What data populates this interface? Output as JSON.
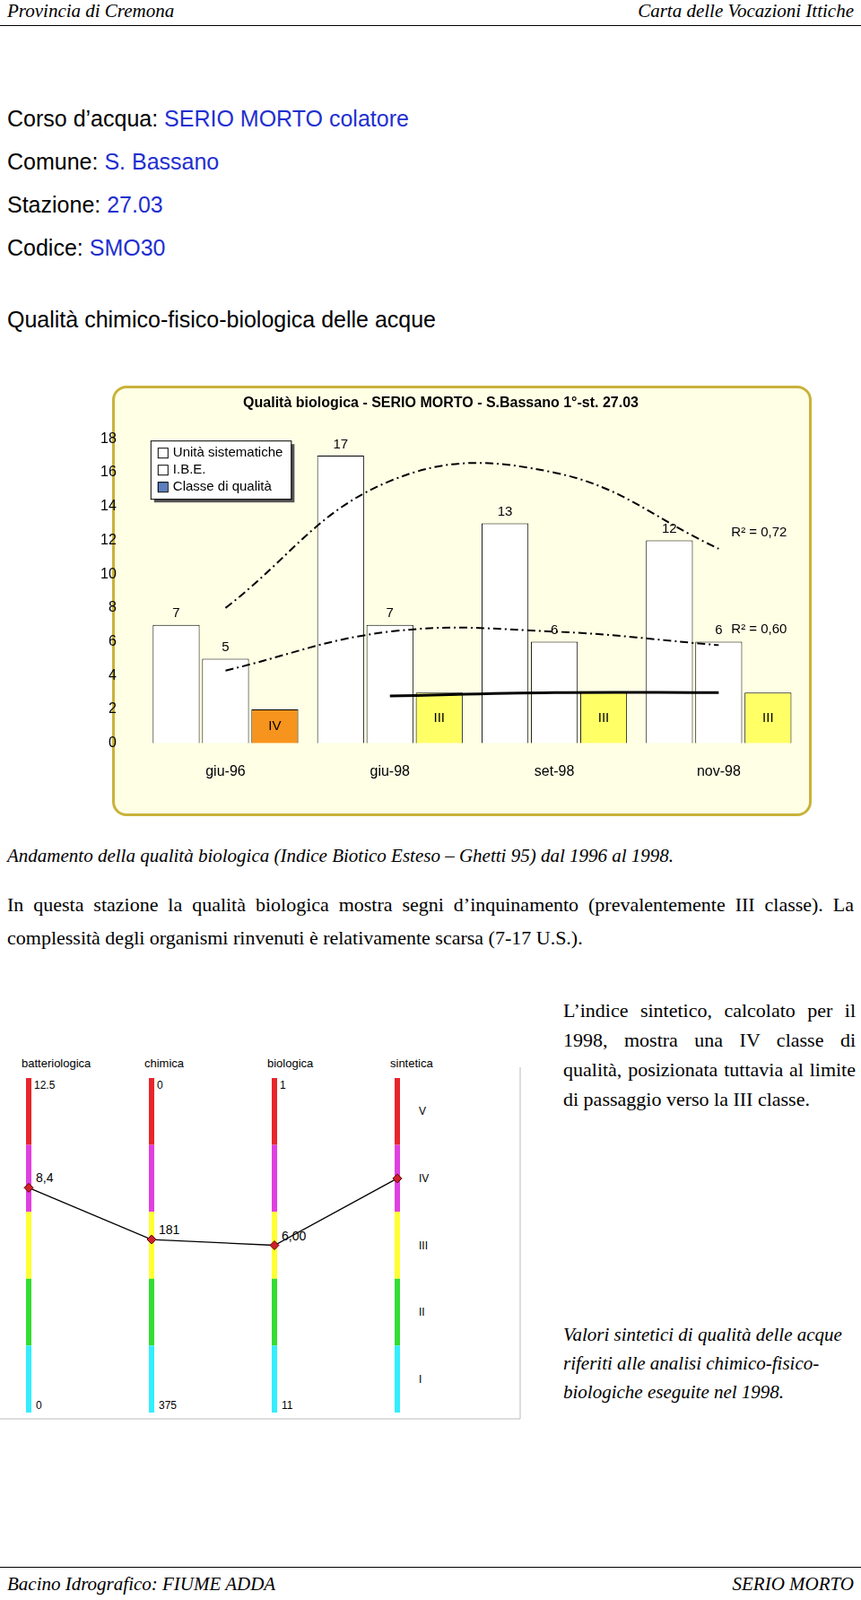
{
  "header": {
    "left": "Provincia di Cremona",
    "right": "Carta delle Vocazioni Ittiche"
  },
  "info": [
    {
      "label": "Corso d’acqua: ",
      "value": "SERIO MORTO colatore"
    },
    {
      "label": "Comune: ",
      "value": "S. Bassano"
    },
    {
      "label": "Stazione: ",
      "value": "27.03"
    },
    {
      "label": "Codice: ",
      "value": "SMO30"
    }
  ],
  "section_title": "Qualità chimico-fisico-biologica delle acque",
  "chart_data": {
    "type": "bar",
    "title": "Qualità biologica - SERIO MORTO - S.Bassano 1°-st. 27.03",
    "categories": [
      "giu-96",
      "giu-98",
      "set-98",
      "nov-98"
    ],
    "ylim": [
      0,
      18
    ],
    "yticks": [
      0,
      2,
      4,
      6,
      8,
      10,
      12,
      14,
      16,
      18
    ],
    "grid": false,
    "legend": "top-left",
    "data_labels": true,
    "series": [
      {
        "name": "Unità sistematiche",
        "color": "#ffffff",
        "values": [
          7,
          17,
          13,
          12
        ]
      },
      {
        "name": "I.B.E.",
        "color": "#ffffff",
        "values": [
          5,
          7,
          6,
          6
        ]
      },
      {
        "name": "Classe di qualità",
        "color": "#5b7fbf",
        "colors": [
          "#f7941d",
          "#ffff66",
          "#ffff66",
          "#ffff66"
        ],
        "values": [
          2,
          3,
          3,
          3
        ],
        "class_labels": [
          "IV",
          "III",
          "III",
          "III"
        ]
      },
      {
        "type": "line",
        "line_style": "dashdot",
        "color": "#000000",
        "values": [
          8,
          15.5,
          16,
          11.5
        ],
        "annotation": "R² = 0,72"
      },
      {
        "type": "line",
        "line_style": "dashdot",
        "color": "#000000",
        "values": [
          4.3,
          6.6,
          6.6,
          5.8
        ],
        "annotation": "R² = 0,60"
      },
      {
        "type": "line",
        "line_style": "solid",
        "color": "#000000",
        "values": [
          null,
          2.8,
          3,
          3
        ]
      }
    ]
  },
  "caption": "Andamento della qualità biologica (Indice Biotico Esteso – Ghetti 95) dal 1996 al 1998.",
  "paragraph": "In questa stazione la qualità biologica mostra segni d’inquinamento (prevalentemente III classe). La complessità degli organismi rinvenuti è relativamente scarsa (7-17 U.S.).",
  "side_text": "L’indice sintetico, calcolato per il 1998, mostra una IV classe di qualità, posizionata tuttavia al limite di passaggio verso la III classe.",
  "synthetic": {
    "colors": [
      "#e8262a",
      "#e040e0",
      "#ffff33",
      "#33dd33",
      "#33eeff"
    ],
    "axes": [
      {
        "title": "batteriologica",
        "top": 12.5,
        "bottom": 0,
        "value": {
          "value": 8.4,
          "label": "8,4"
        }
      },
      {
        "title": "chimica",
        "top": 0,
        "bottom": 375,
        "value": 181
      },
      {
        "title": "biologica",
        "top": 1,
        "bottom": 11,
        "value": {
          "value": 6,
          "label": "6,00"
        }
      },
      {
        "title": "sintetica",
        "classes": [
          "V",
          "IV",
          "III",
          "II",
          "I"
        ],
        "value": "IV"
      }
    ]
  },
  "synthetic_caption": "Valori sintetici di qualità delle acque riferiti alle analisi chimico-fisico-biologiche eseguite nel 1998.",
  "footer": {
    "left": "Bacino Idrografico: FIUME ADDA",
    "right": "SERIO MORTO"
  }
}
